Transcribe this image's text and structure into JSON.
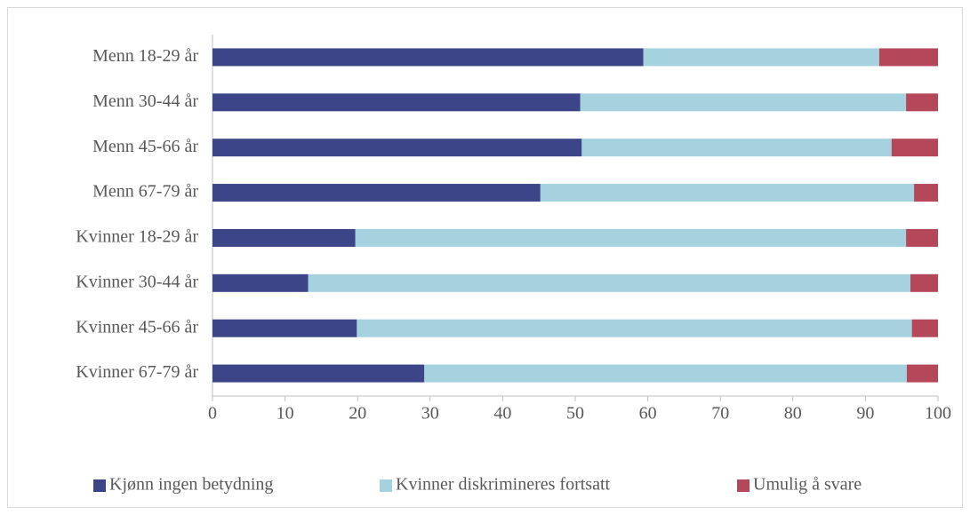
{
  "chart_data": {
    "type": "stacked_bar_horizontal",
    "categories": [
      "Menn 18-29 år",
      "Menn 30-44 år",
      "Menn 45-66 år",
      "Menn 67-79 år",
      "Kvinner 18-29 år",
      "Kvinner 30-44 år",
      "Kvinner 45-66 år",
      "Kvinner 67-79 år"
    ],
    "series": [
      {
        "name": "Kjønn ingen betydning",
        "color": "#3b4587",
        "values": [
          59.4,
          50.7,
          50.9,
          45.2,
          19.7,
          13.2,
          19.9,
          29.2
        ]
      },
      {
        "name": "Kvinner diskrimineres fortsatt",
        "color": "#a6d2e0",
        "values": [
          32.5,
          44.9,
          42.7,
          51.5,
          75.9,
          83.0,
          76.5,
          66.5
        ]
      },
      {
        "name": "Umulig å svare",
        "color": "#b5475b",
        "values": [
          8.1,
          4.4,
          6.4,
          3.3,
          4.4,
          3.8,
          3.6,
          4.3
        ]
      }
    ],
    "xlim": [
      0,
      100
    ],
    "xticks": [
      0,
      10,
      20,
      30,
      40,
      50,
      60,
      70,
      80,
      90,
      100
    ],
    "legend": "bottom"
  }
}
